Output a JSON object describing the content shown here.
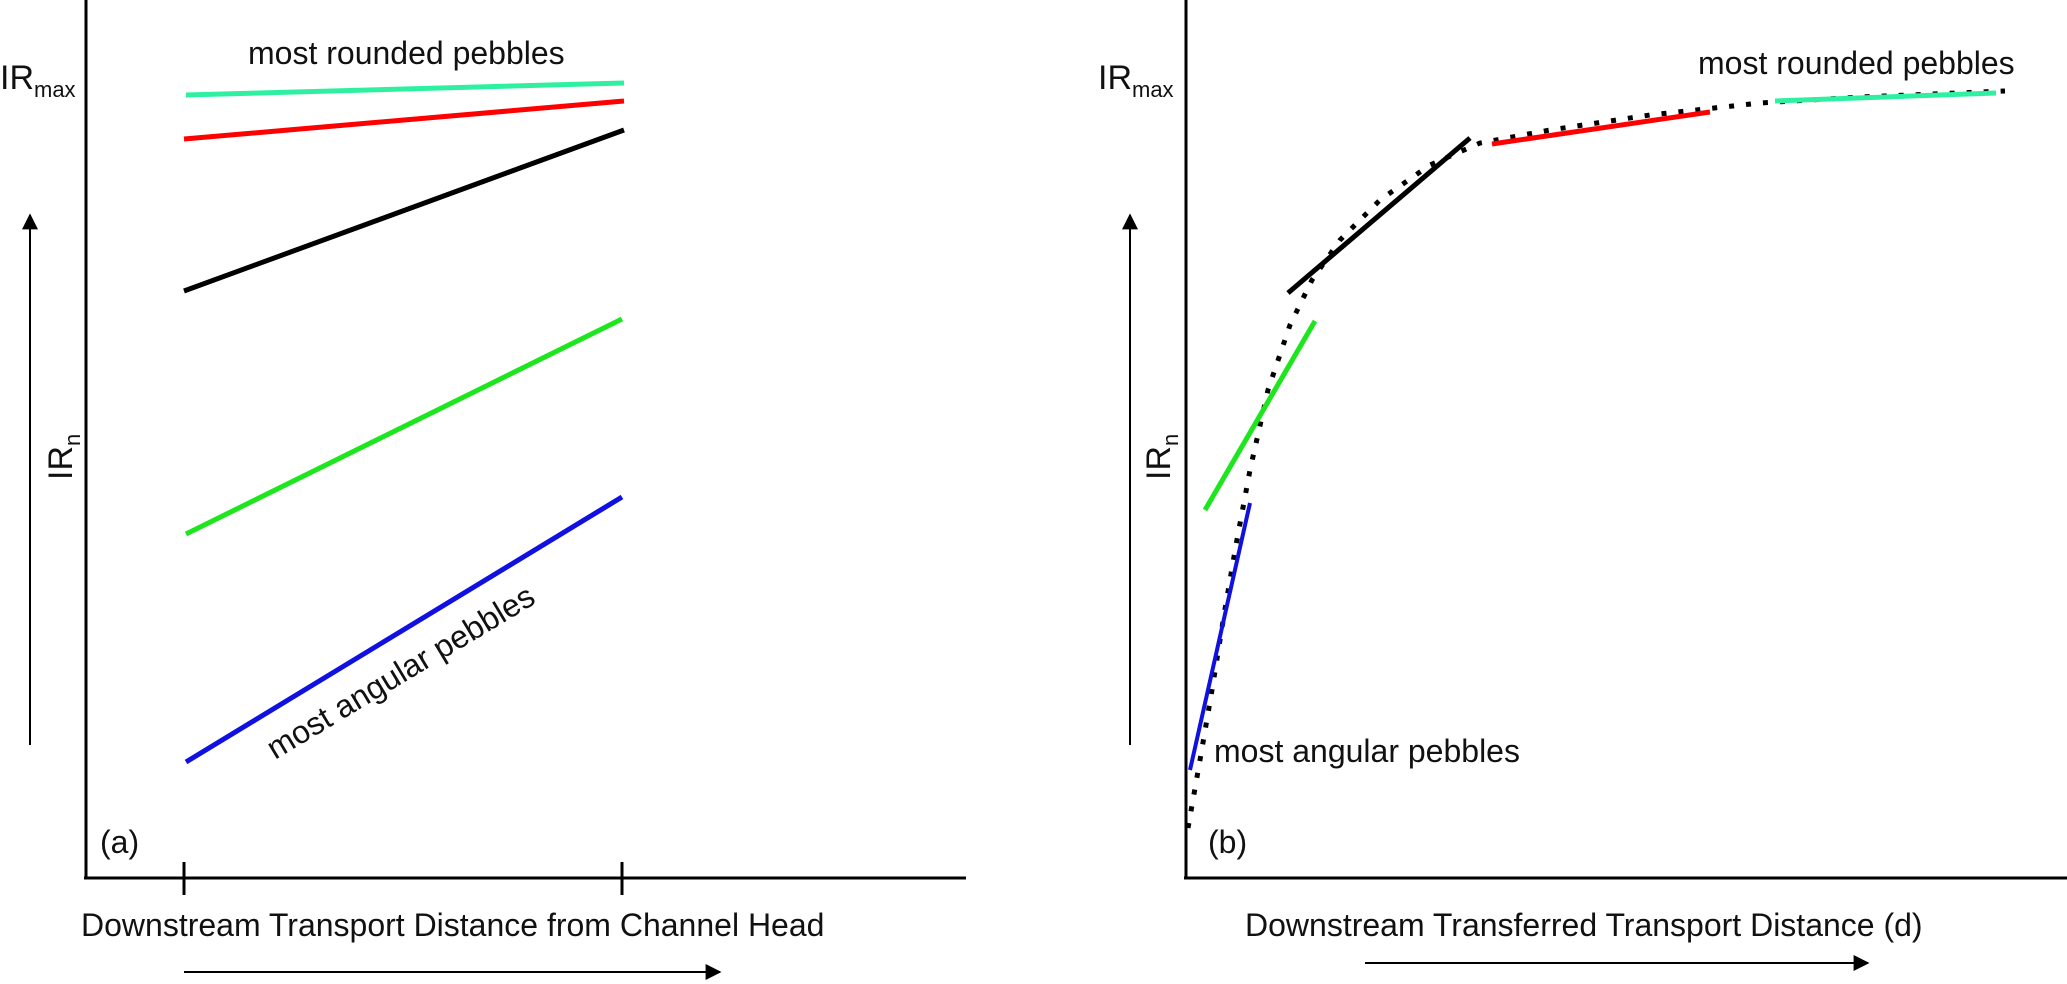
{
  "panel_a": {
    "tag": "(a)",
    "y_label_main": "IR",
    "y_label_sub": "n",
    "y_max_main": "IR",
    "y_max_sub": "max",
    "x_label": "Downstream Transport Distance from Channel Head",
    "top_note": "most rounded pebbles",
    "bottom_note": "most angular pebbles"
  },
  "panel_b": {
    "tag": "(b)",
    "y_label_main": "IR",
    "y_label_sub": "n",
    "y_max_main": "IR",
    "y_max_sub": "max",
    "x_label": "Downstream Transferred Transport Distance (d)",
    "top_note": "most rounded pebbles",
    "bottom_note": "most angular pebbles"
  },
  "colors": {
    "rounded": "#2ef0a0",
    "red": "#ff0000",
    "black": "#000000",
    "green": "#1ee61e",
    "angular": "#1010e0"
  }
}
